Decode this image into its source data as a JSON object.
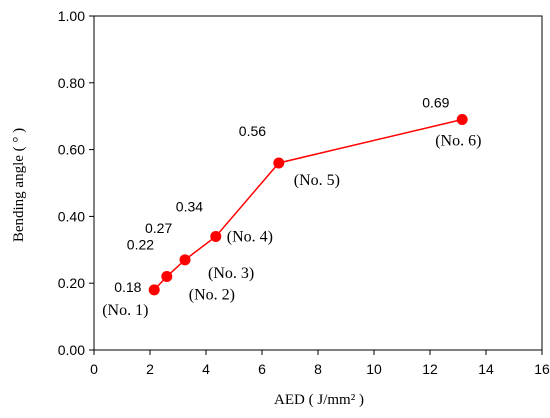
{
  "chart_data": {
    "type": "line",
    "title": "",
    "xlabel": "AED ( J/mm² )",
    "ylabel": "Bending angle ( ° )",
    "xlim": [
      0,
      16
    ],
    "ylim": [
      0,
      1.0
    ],
    "xticks": [
      "0",
      "2",
      "4",
      "6",
      "8",
      "10",
      "12",
      "14",
      "16"
    ],
    "yticks": [
      "0.00",
      "0.20",
      "0.40",
      "0.60",
      "0.80",
      "1.00"
    ],
    "grid": false,
    "legend": "none",
    "series": [
      {
        "color": "#ff0000",
        "points": [
          {
            "x": 2.15,
            "y": 0.18,
            "value_label": "0.18",
            "point_label": "(No. 1)"
          },
          {
            "x": 2.6,
            "y": 0.22,
            "value_label": "0.22",
            "point_label": "(No. 2)"
          },
          {
            "x": 3.25,
            "y": 0.27,
            "value_label": "0.27",
            "point_label": "(No. 3)"
          },
          {
            "x": 4.35,
            "y": 0.34,
            "value_label": "0.34",
            "point_label": "(No. 4)"
          },
          {
            "x": 6.6,
            "y": 0.56,
            "value_label": "0.56",
            "point_label": "(No. 5)"
          },
          {
            "x": 13.15,
            "y": 0.69,
            "value_label": "0.69",
            "point_label": "(No. 6)"
          }
        ]
      }
    ]
  }
}
